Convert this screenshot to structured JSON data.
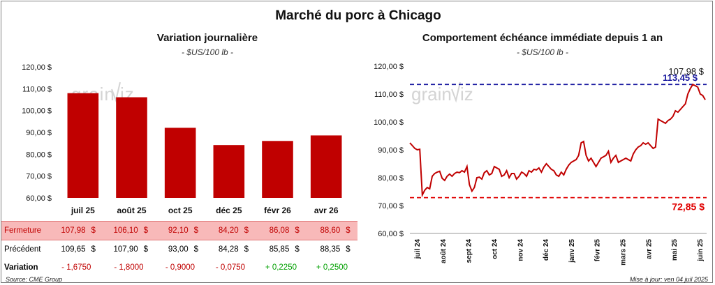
{
  "title": "Marché du porc à Chicago",
  "watermark": "grainViz",
  "left_chart": {
    "title": "Variation journalière",
    "subtitle": "- $US/100 lb -",
    "y_ticks": [
      "120,00 $",
      "110,00 $",
      "100,00 $",
      "90,00 $",
      "80,00 $",
      "70,00 $",
      "60,00 $"
    ],
    "color": "#c00000"
  },
  "table": {
    "rows": [
      {
        "label": "Fermeture",
        "style": "close",
        "values": [
          "107,98",
          "106,10",
          "92,10",
          "84,20",
          "86,08",
          "88,60"
        ],
        "currency": "$"
      },
      {
        "label": "Précédent",
        "style": "prev",
        "values": [
          "109,65",
          "107,90",
          "93,00",
          "84,28",
          "85,85",
          "88,35"
        ],
        "currency": "$"
      },
      {
        "label": "Variation",
        "style": "var",
        "values": [
          "- 1,6750",
          "- 1,8000",
          "- 0,9000",
          "- 0,0750",
          "+ 0,2250",
          "+ 0,2500"
        ]
      }
    ]
  },
  "right_chart": {
    "title": "Comportement  échéance immédiate depuis 1 an",
    "subtitle": "- $US/100 lb -",
    "y_ticks": [
      "120,00 $",
      "110,00 $",
      "100,00 $",
      "90,00 $",
      "80,00 $",
      "70,00 $",
      "60,00 $"
    ],
    "x_ticks": [
      "juil 24",
      "août 24",
      "sept 24",
      "oct 24",
      "nov 24",
      "déc 24",
      "janv 25",
      "févr 25",
      "mars 25",
      "avr 25",
      "mai 25",
      "juin 25"
    ],
    "last_label": "107,98 $",
    "max_label": "113,45 $",
    "min_label": "72,85 $",
    "line_color": "#c00000",
    "max_color": "#1a1aa0",
    "min_color": "#e00000"
  },
  "chart_data": [
    {
      "type": "bar",
      "title": "Variation journalière",
      "categories": [
        "juil 25",
        "août 25",
        "oct 25",
        "déc 25",
        "févr 26",
        "avr 26"
      ],
      "values": [
        107.98,
        106.1,
        92.1,
        84.2,
        86.08,
        88.6
      ],
      "ylim": [
        60,
        120
      ],
      "grid": false
    },
    {
      "type": "line",
      "title": "Comportement  échéance immédiate depuis 1 an",
      "ylim": [
        60,
        120
      ],
      "series": [
        {
          "values": [
            92.5,
            91.5,
            90.5,
            90.0,
            90.2,
            73.8,
            75.5,
            76.5,
            76.0,
            80.5,
            81.5,
            82.0,
            82.3,
            79.8,
            79.0,
            80.5,
            81.3,
            80.5,
            81.5,
            82.0,
            81.8,
            82.5,
            82.0,
            84.0,
            77.5,
            75.2,
            76.5,
            80.0,
            80.2,
            79.5,
            81.8,
            82.5,
            81.0,
            81.5,
            84.0,
            83.5,
            83.0,
            80.5,
            81.0,
            82.5,
            80.0,
            81.5,
            81.5,
            79.5,
            80.5,
            82.0,
            81.5,
            80.5,
            82.5,
            82.0,
            83.0,
            82.8,
            83.5,
            82.0,
            83.8,
            85.0,
            84.0,
            83.0,
            82.5,
            81.0,
            80.5,
            82.0,
            81.0,
            83.0,
            84.5,
            85.5,
            86.0,
            86.5,
            88.0,
            92.5,
            93.0,
            88.0,
            86.0,
            87.0,
            85.5,
            84.0,
            85.5,
            87.0,
            87.5,
            88.0,
            89.5,
            85.5,
            87.0,
            88.0,
            85.5,
            86.0,
            86.5,
            87.0,
            86.5,
            86.0,
            88.5,
            90.0,
            91.0,
            91.5,
            92.5,
            92.0,
            92.5,
            91.5,
            90.5,
            91.0,
            101.0,
            100.5,
            100.0,
            99.5,
            100.5,
            101.0,
            102.0,
            104.0,
            103.5,
            104.5,
            105.5,
            106.5,
            110.0,
            112.0,
            113.45,
            113.0,
            112.5,
            110.0,
            109.5,
            107.98
          ]
        }
      ],
      "reference_lines": [
        {
          "label": "113,45 $",
          "value": 113.45
        },
        {
          "label": "72,85 $",
          "value": 72.85
        }
      ]
    }
  ],
  "footer": {
    "source": "Source: CME Group",
    "updated": "Mise à jour: ven 04 juil 2025"
  }
}
